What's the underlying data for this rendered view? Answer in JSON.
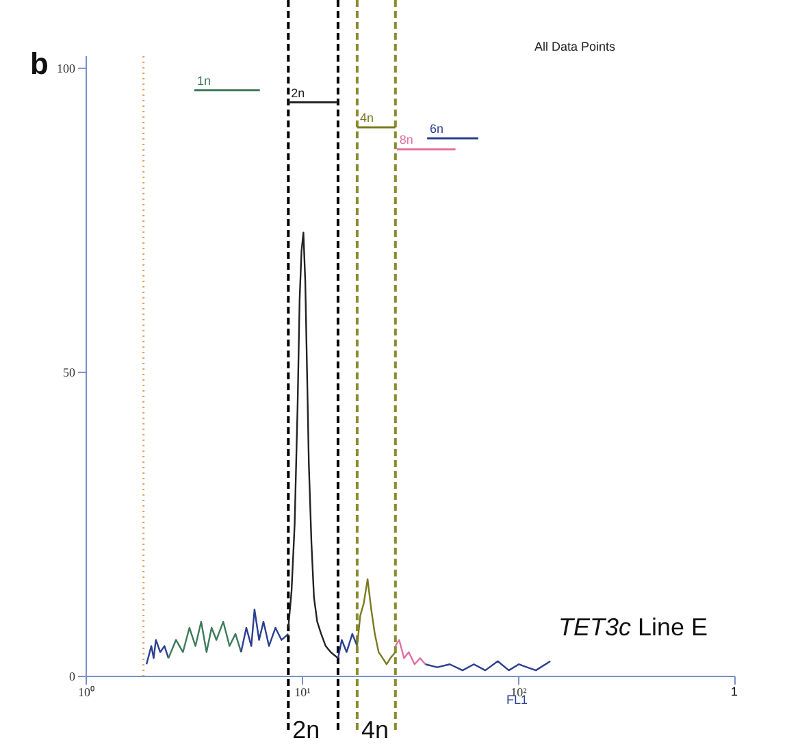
{
  "chart_data": {
    "type": "line",
    "title": "All Data Points",
    "xlabel": "FL1",
    "log": "x",
    "xlim": [
      1,
      1000
    ],
    "xticks": [
      {
        "value": 1,
        "label": "10⁰"
      },
      {
        "value": 10,
        "label": "10¹"
      },
      {
        "value": 100,
        "label": "10²"
      },
      {
        "value": 1000,
        "label": null
      }
    ],
    "ylim": [
      0,
      102
    ],
    "yticks": [
      0,
      50,
      100
    ],
    "grid": false,
    "legend": false,
    "marker": "none",
    "annotations": [
      "b",
      "TET3c Line E",
      "1"
    ],
    "ref_lines": [
      {
        "axis": "x",
        "value": 1.84,
        "color": "#e8a060",
        "line_style": "dotted"
      },
      {
        "axis": "x",
        "value": 8.6,
        "label": "2n",
        "color": "#000000",
        "line_style": "dashed"
      },
      {
        "axis": "x",
        "value": 14.6,
        "color": "#000000",
        "line_style": "dashed"
      },
      {
        "axis": "x",
        "value": 17.9,
        "label": "4n",
        "color": "#8a8a30",
        "line_style": "dashed"
      },
      {
        "axis": "x",
        "value": 26.9,
        "color": "#8a8a30",
        "line_style": "dashed"
      }
    ],
    "series": [
      {
        "color": "#2a3f8f",
        "x": [
          1.9,
          2.0,
          2.05,
          2.1,
          2.2,
          2.3,
          2.4
        ],
        "values": [
          2,
          5,
          3,
          6,
          4,
          5,
          3
        ]
      },
      {
        "color": "#3d7a5a",
        "x": [
          2.4,
          2.6,
          2.8,
          3.0,
          3.2,
          3.4,
          3.6,
          3.8,
          4.0,
          4.3,
          4.6,
          4.9,
          5.2
        ],
        "values": [
          3,
          6,
          4,
          8,
          5,
          9,
          4,
          8,
          6,
          9,
          5,
          7,
          4
        ]
      },
      {
        "color": "#2a3f8f",
        "x": [
          5.2,
          5.5,
          5.8,
          6.0,
          6.3,
          6.6,
          7.0,
          7.5,
          8.0,
          8.6
        ],
        "values": [
          4,
          8,
          5,
          11,
          6,
          9,
          5,
          8,
          6,
          7
        ]
      },
      {
        "color": "#222222",
        "x": [
          8.6,
          8.9,
          9.2,
          9.5,
          9.7,
          9.9,
          10.1,
          10.3,
          10.5,
          10.7,
          11.0,
          11.3,
          11.7,
          12.2,
          12.8,
          13.5,
          14.6
        ],
        "values": [
          8,
          14,
          25,
          45,
          62,
          70,
          73,
          65,
          50,
          35,
          22,
          13,
          9,
          7,
          5,
          4,
          3
        ]
      },
      {
        "color": "#2a3f8f",
        "x": [
          14.6,
          15.2,
          16,
          17,
          17.9
        ],
        "values": [
          3,
          6,
          4,
          7,
          5
        ]
      },
      {
        "color": "#7a7a20",
        "x": [
          17.9,
          18.5,
          19.2,
          20,
          20.8,
          21.6,
          22.5,
          23.5,
          24.5,
          25.5,
          26.9
        ],
        "values": [
          5,
          10,
          12,
          16,
          11,
          7,
          4,
          3,
          2,
          3,
          4
        ]
      },
      {
        "color": "#e070a0",
        "x": [
          26.9,
          28,
          29.5,
          31,
          33,
          35,
          37
        ],
        "values": [
          5,
          6,
          3,
          4,
          2,
          3,
          2
        ]
      },
      {
        "color": "#2a3f8f",
        "x": [
          37,
          42,
          48,
          55,
          62,
          70,
          80,
          90,
          100,
          120,
          140
        ],
        "values": [
          2,
          1.5,
          2,
          1,
          2,
          1,
          2.5,
          1,
          2,
          1,
          2.5
        ]
      },
      {
        "name": "1n",
        "color": "#3d7a5a",
        "x": [
          3.16,
          6.35
        ],
        "values": [
          96.4,
          96.4
        ]
      },
      {
        "name": "2n",
        "color": "#222222",
        "x": [
          8.6,
          14.6
        ],
        "values": [
          94.4,
          94.4
        ]
      },
      {
        "name": "4n",
        "color": "#7a7a20",
        "x": [
          17.9,
          26.9
        ],
        "values": [
          90.3,
          90.3
        ]
      },
      {
        "name": "6n",
        "color": "#2a3f8f",
        "x": [
          37.7,
          65
        ],
        "values": [
          88.5,
          88.5
        ]
      },
      {
        "name": "8n",
        "color": "#e070a0",
        "x": [
          27.3,
          51
        ],
        "values": [
          86.7,
          86.7
        ]
      }
    ]
  }
}
